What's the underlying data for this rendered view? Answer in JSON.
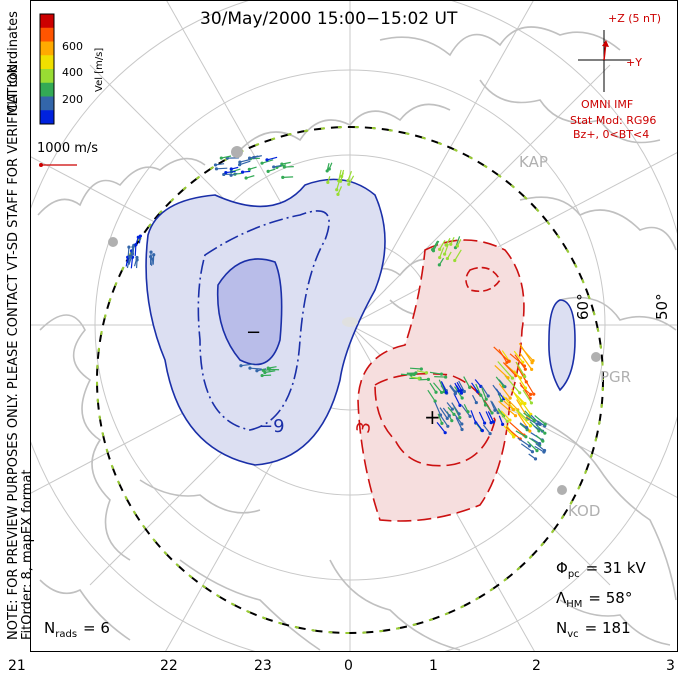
{
  "title": "30/May/2000  15:00−15:02  UT",
  "coordinates_label": "MLT coordinates",
  "preview_note": "NOTE: FOR PREVIEW PURPOSES ONLY. PLEASE CONTACT VT-SD STAFF FOR VERIFICATION.",
  "fit_note": "FitOrder: 8, mapEX format",
  "velocity_scale": {
    "label": "Vel [m/s]",
    "ticks": [
      "600",
      "400",
      "200"
    ],
    "colors": [
      "#cc0000",
      "#ff5500",
      "#ffaa00",
      "#f0e000",
      "#99dd33",
      "#33aa55",
      "#3366aa",
      "#0022dd"
    ]
  },
  "vector_scale_label": "1000 m/s",
  "imf": {
    "bz_label": "+Z (5 nT)",
    "by_label": "+Y",
    "source": "OMNI IMF",
    "model_line1": "Stat Mod: RG96",
    "model_line2": "Bz+, 0<BT<4"
  },
  "stations": [
    "KAP",
    "PGR",
    "KOD"
  ],
  "latitude_labels": [
    "60°",
    "50°"
  ],
  "contours": {
    "negative": "−9",
    "positive": "3",
    "min_marker": "−",
    "max_marker": "+"
  },
  "stats": {
    "phi_symbol": "Φ",
    "phi_sub": "pc",
    "phi_value": "=  31 kV",
    "lambda_symbol": "Λ",
    "lambda_sub": "HM",
    "lambda_value": "=  58°",
    "nvc_symbol": "N",
    "nvc_sub": "vc",
    "nvc_value": "=  181",
    "nrads_symbol": "N",
    "nrads_sub": "rads",
    "nrads_value": "=  6"
  },
  "mlt_ticks": [
    "21",
    "22",
    "23",
    "0",
    "1",
    "2",
    "3"
  ],
  "colors": {
    "negative_fill": "#dcdff2",
    "negative_core": "#b9bde9",
    "negative_line": "#1a2fa8",
    "positive_fill": "#f6dede",
    "positive_line": "#cc1111",
    "map": "#c0c0c0"
  }
}
